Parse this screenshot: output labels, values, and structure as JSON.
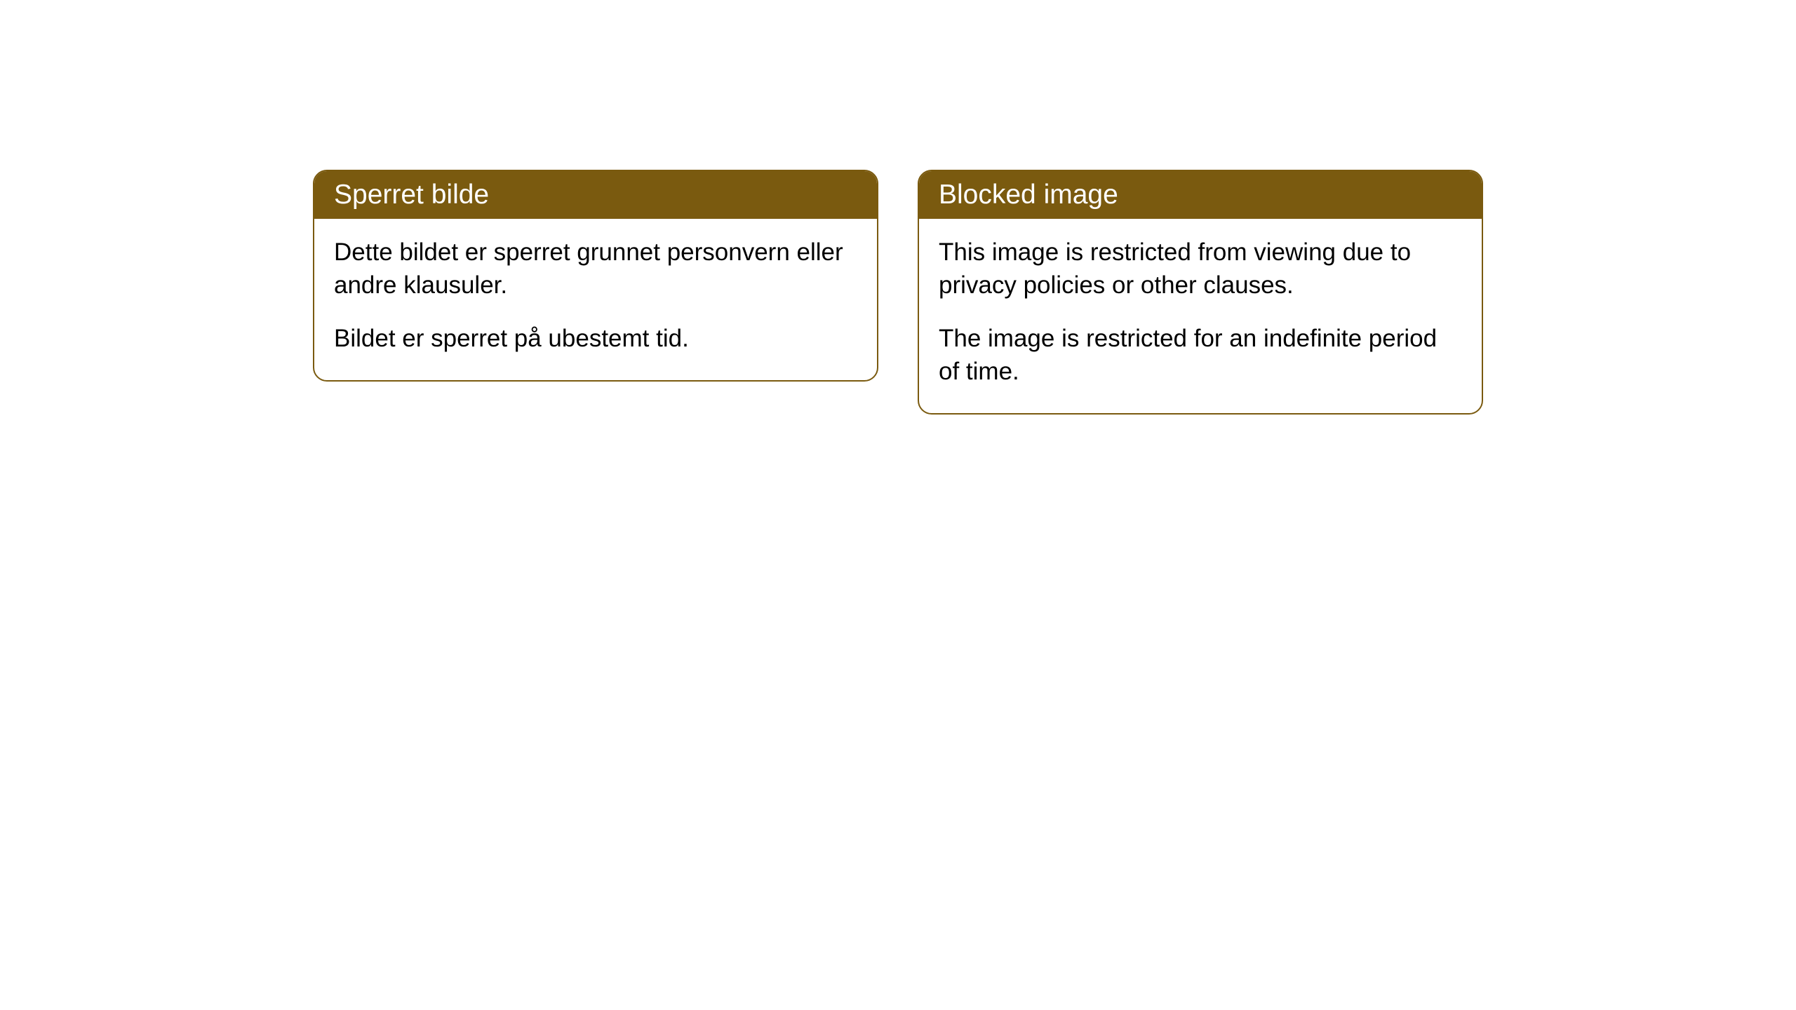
{
  "cards": [
    {
      "header": "Sperret bilde",
      "paragraph1": "Dette bildet er sperret grunnet personvern eller andre klausuler.",
      "paragraph2": "Bildet er sperret på ubestemt tid."
    },
    {
      "header": "Blocked image",
      "paragraph1": "This image is restricted from viewing due to privacy policies or other clauses.",
      "paragraph2": "The image is restricted for an indefinite period of time."
    }
  ],
  "colors": {
    "header_bg": "#7a5a0f",
    "header_text": "#ffffff",
    "border": "#7a5a0f",
    "body_text": "#000000",
    "background": "#ffffff"
  }
}
